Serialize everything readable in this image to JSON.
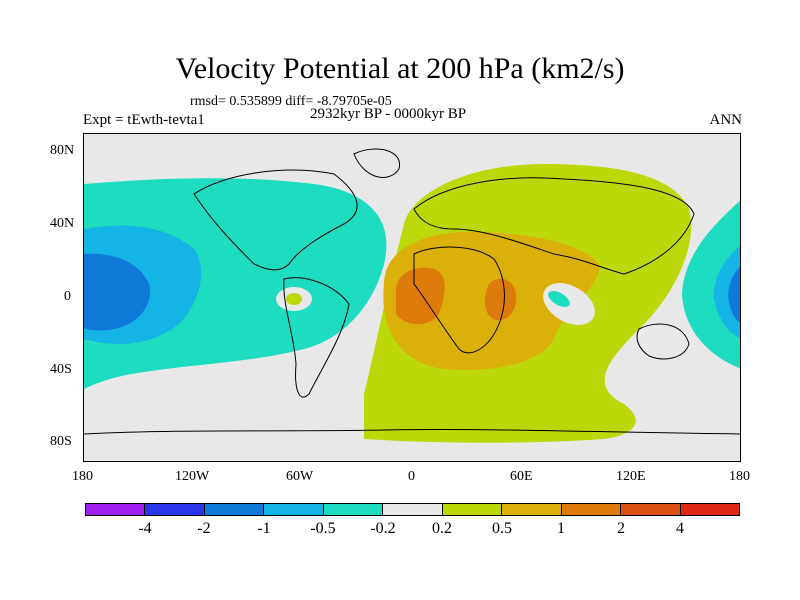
{
  "title": "Velocity Potential at 200 hPa (km2/s)",
  "stats": "rmsd= 0.535899 diff= -8.79705e-05",
  "period": "2932kyr BP - 0000kyr BP",
  "experiment": "Expt = tEwth-tevta1",
  "season": "ANN",
  "axes": {
    "y_labels": [
      "80N",
      "40N",
      "0",
      "40S",
      "80S"
    ],
    "x_labels": [
      "180",
      "120W",
      "60W",
      "0",
      "60E",
      "120E",
      "180"
    ]
  },
  "colorbar": {
    "levels": [
      "-4",
      "-2",
      "-1",
      "-0.5",
      "-0.2",
      "0.2",
      "0.5",
      "1",
      "2",
      "4"
    ],
    "colors": [
      "#a020f0",
      "#2a35e8",
      "#0f78d8",
      "#14b4e4",
      "#1ddcc0",
      "#e8e8e8",
      "#bcd80a",
      "#dcb00a",
      "#dc7a0a",
      "#dc5014",
      "#dc2814"
    ]
  }
}
